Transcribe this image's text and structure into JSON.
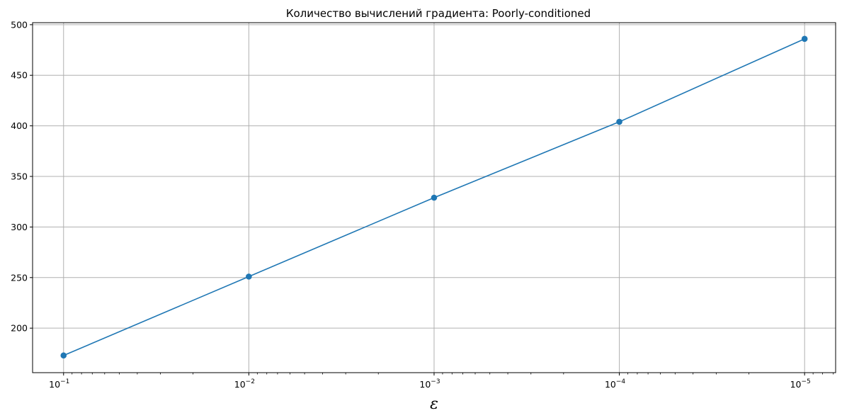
{
  "chart_data": {
    "type": "line",
    "title": "Количество вычислений градиента: Poorly-conditioned",
    "xlabel": "ε",
    "ylabel": "",
    "x_scale": "log",
    "x_reversed": true,
    "x": [
      0.1,
      0.01,
      0.001,
      0.0001,
      1e-05
    ],
    "x_tick_labels": [
      {
        "base": "10",
        "exp": "−1"
      },
      {
        "base": "10",
        "exp": "−2"
      },
      {
        "base": "10",
        "exp": "−3"
      },
      {
        "base": "10",
        "exp": "−4"
      },
      {
        "base": "10",
        "exp": "−5"
      }
    ],
    "series": [
      {
        "values": [
          173,
          251,
          329,
          404,
          486
        ],
        "color": "#1f77b4",
        "marker": "circle"
      }
    ],
    "y_ticks": [
      200,
      250,
      300,
      350,
      400,
      450,
      500
    ],
    "ylim": [
      156,
      502
    ],
    "xlim": [
      0.147,
      6.8e-06
    ],
    "grid": true
  }
}
